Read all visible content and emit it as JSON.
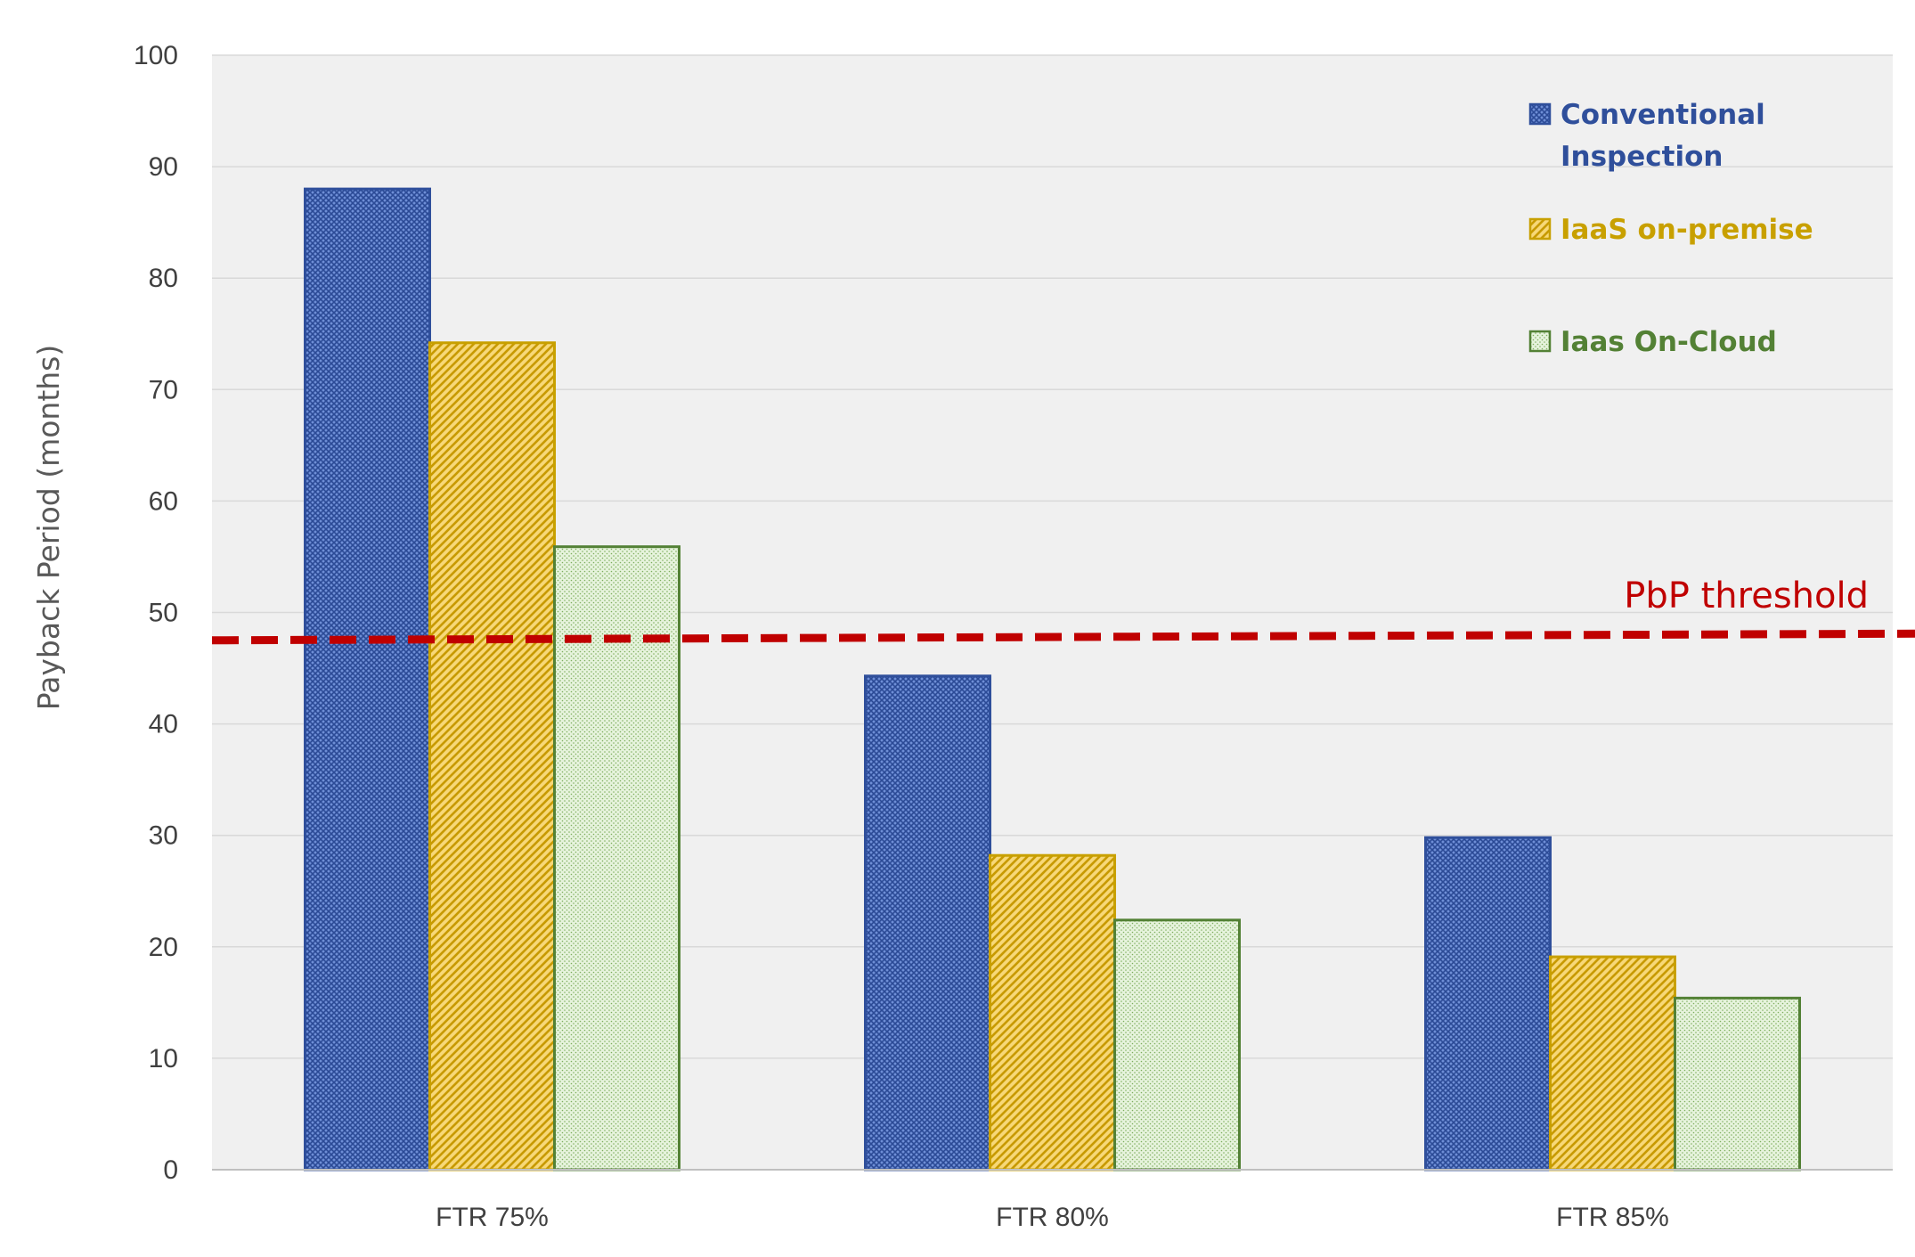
{
  "chart_data": {
    "type": "bar",
    "title": "",
    "xlabel": "",
    "ylabel": "Payback Period (months)",
    "ylim": [
      0,
      100
    ],
    "yticks": [
      0,
      10,
      20,
      30,
      40,
      50,
      60,
      70,
      80,
      90,
      100
    ],
    "categories": [
      "FTR 75%",
      "FTR 80%",
      "FTR 85%"
    ],
    "series": [
      {
        "name": "Conventional Inspection",
        "legend_lines": [
          "Conventional",
          "Inspection"
        ],
        "values": [
          88,
          44.3,
          29.8
        ],
        "color": "#2F4F9B",
        "fill": "#5B7DC8",
        "pattern": "crosshatch"
      },
      {
        "name": "IaaS on-premise",
        "legend_lines": [
          "IaaS on-premise"
        ],
        "values": [
          74.2,
          28.2,
          19.1
        ],
        "color": "#C8A000",
        "fill": "#F3C43A",
        "pattern": "diagonal"
      },
      {
        "name": "Iaas On-Cloud",
        "legend_lines": [
          "Iaas On-Cloud"
        ],
        "values": [
          55.9,
          22.4,
          15.4
        ],
        "color": "#538135",
        "fill": "#E3F1D8",
        "pattern": "dots"
      }
    ],
    "threshold": {
      "label": "PbP threshold",
      "value_start": 47.5,
      "value_end": 48.1,
      "color": "#C00000"
    },
    "grid": true,
    "legend_position": "top-right",
    "plot_background": "#F0F0F0"
  }
}
